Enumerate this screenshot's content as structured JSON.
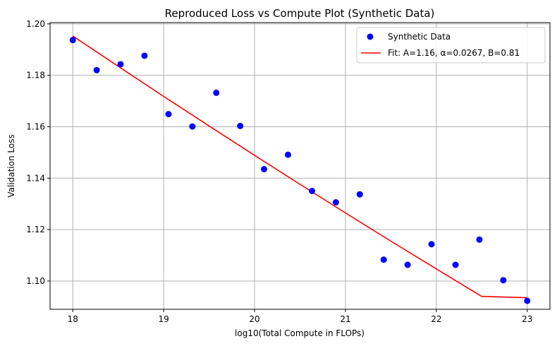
{
  "chart_data": {
    "type": "scatter",
    "title": "Reproduced Loss vs Compute Plot (Synthetic Data)",
    "xlabel": "log10(Total Compute in FLOPs)",
    "ylabel": "Validation Loss",
    "xlim": [
      17.75,
      23.25
    ],
    "ylim": [
      1.089,
      1.2005
    ],
    "xticks": [
      18,
      19,
      20,
      21,
      22,
      23
    ],
    "xtick_labels": [
      "18",
      "19",
      "20",
      "21",
      "22",
      "23"
    ],
    "yticks": [
      1.1,
      1.12,
      1.14,
      1.16,
      1.18,
      1.2
    ],
    "ytick_labels": [
      "1.10",
      "1.12",
      "1.14",
      "1.16",
      "1.18",
      "1.20"
    ],
    "grid": true,
    "legend_position": "top-right",
    "series": [
      {
        "name": "Synthetic Data",
        "kind": "scatter",
        "color": "#0000ff",
        "x": [
          18.0,
          18.263,
          18.526,
          18.789,
          19.053,
          19.316,
          19.579,
          19.842,
          20.105,
          20.368,
          20.632,
          20.895,
          21.158,
          21.421,
          21.684,
          21.947,
          22.211,
          22.474,
          22.737,
          23.0
        ],
        "y": [
          1.1937,
          1.182,
          1.1843,
          1.1876,
          1.1649,
          1.1601,
          1.1732,
          1.1603,
          1.1435,
          1.1491,
          1.135,
          1.1306,
          1.1337,
          1.1083,
          1.1063,
          1.1143,
          1.1063,
          1.1161,
          1.1003,
          1.0923
        ]
      },
      {
        "name": "Fit: A=1.16, α=0.0267, B=0.81",
        "kind": "line",
        "color": "#ff0000",
        "x": [
          18.0,
          18.5,
          19.0,
          19.5,
          20.0,
          20.5,
          21.0,
          21.5,
          22.0,
          22.5,
          23.0
        ],
        "y": [
          1.1953,
          1.1835,
          1.1718,
          1.1603,
          1.1489,
          1.1376,
          1.1265,
          1.1155,
          1.1047,
          1.094,
          1.0935
        ]
      }
    ]
  }
}
